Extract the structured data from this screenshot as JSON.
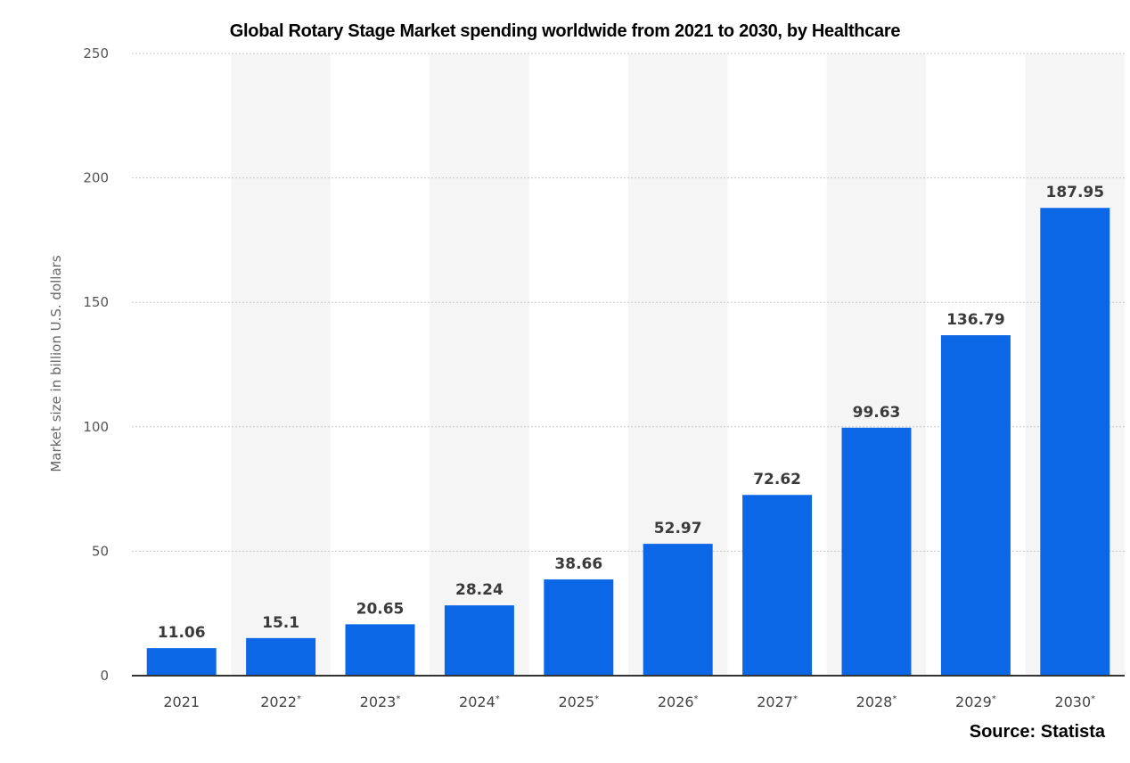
{
  "chart_data": {
    "type": "bar",
    "title": "Global Rotary Stage Market spending worldwide from 2021 to 2030, by Healthcare",
    "xlabel": "",
    "ylabel": "Market size in billion U.S. dollars",
    "categories": [
      "2021",
      "2022*",
      "2023*",
      "2024*",
      "2025*",
      "2026*",
      "2027*",
      "2028*",
      "2029*",
      "2030*"
    ],
    "values": [
      11.06,
      15.1,
      20.65,
      28.24,
      38.66,
      52.97,
      72.62,
      99.63,
      136.79,
      187.95
    ],
    "value_labels": [
      "11.06",
      "15.1",
      "20.65",
      "28.24",
      "38.66",
      "52.97",
      "72.62",
      "99.63",
      "136.79",
      "187.95"
    ],
    "yticks": [
      0,
      50,
      100,
      150,
      200,
      250
    ],
    "ylim": [
      0,
      250
    ],
    "grid": true,
    "bar_color": "#0b67e6",
    "band_color": "#f5f5f5"
  },
  "source": "Source: Statista"
}
